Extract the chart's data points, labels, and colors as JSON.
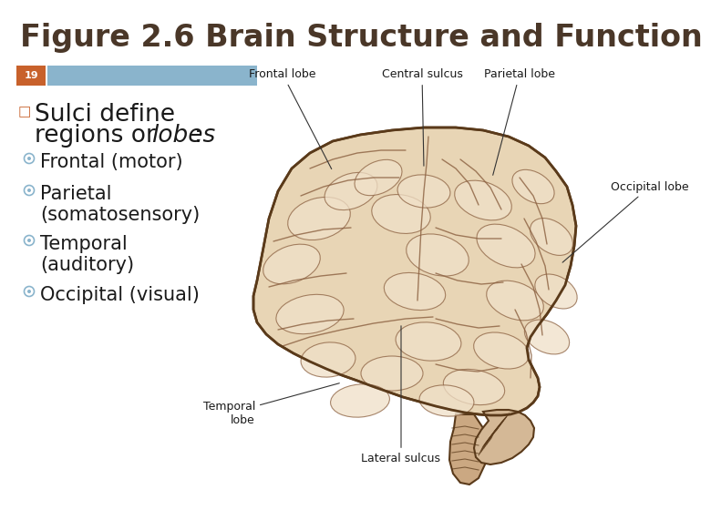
{
  "title": "Figure 2.6 Brain Structure and Function",
  "title_color": "#4a3728",
  "title_fontsize": 24,
  "slide_number": "19",
  "slide_num_bg": "#c8612b",
  "slide_num_color": "#ffffff",
  "header_bar_color": "#8ab4cc",
  "main_bullet_marker": "□",
  "main_bullet_color": "#c8612b",
  "main_fontsize": 19,
  "sub_bullets": [
    "Frontal (motor)",
    "Parietal\n(somatosensory)",
    "Temporal\n(auditory)",
    "Occipital (visual)"
  ],
  "sub_bullet_color": "#8ab4cc",
  "sub_fontsize": 15,
  "bg_color": "#ffffff",
  "brain_color_outer": "#e8d5b5",
  "brain_color_inner": "#dfc9a0",
  "brain_color_gyri": "#f0e0c8",
  "brain_edge_color": "#5a3a1a",
  "sulci_color": "#8b6040",
  "label_fontsize": 9,
  "text_color": "#1a1a1a"
}
